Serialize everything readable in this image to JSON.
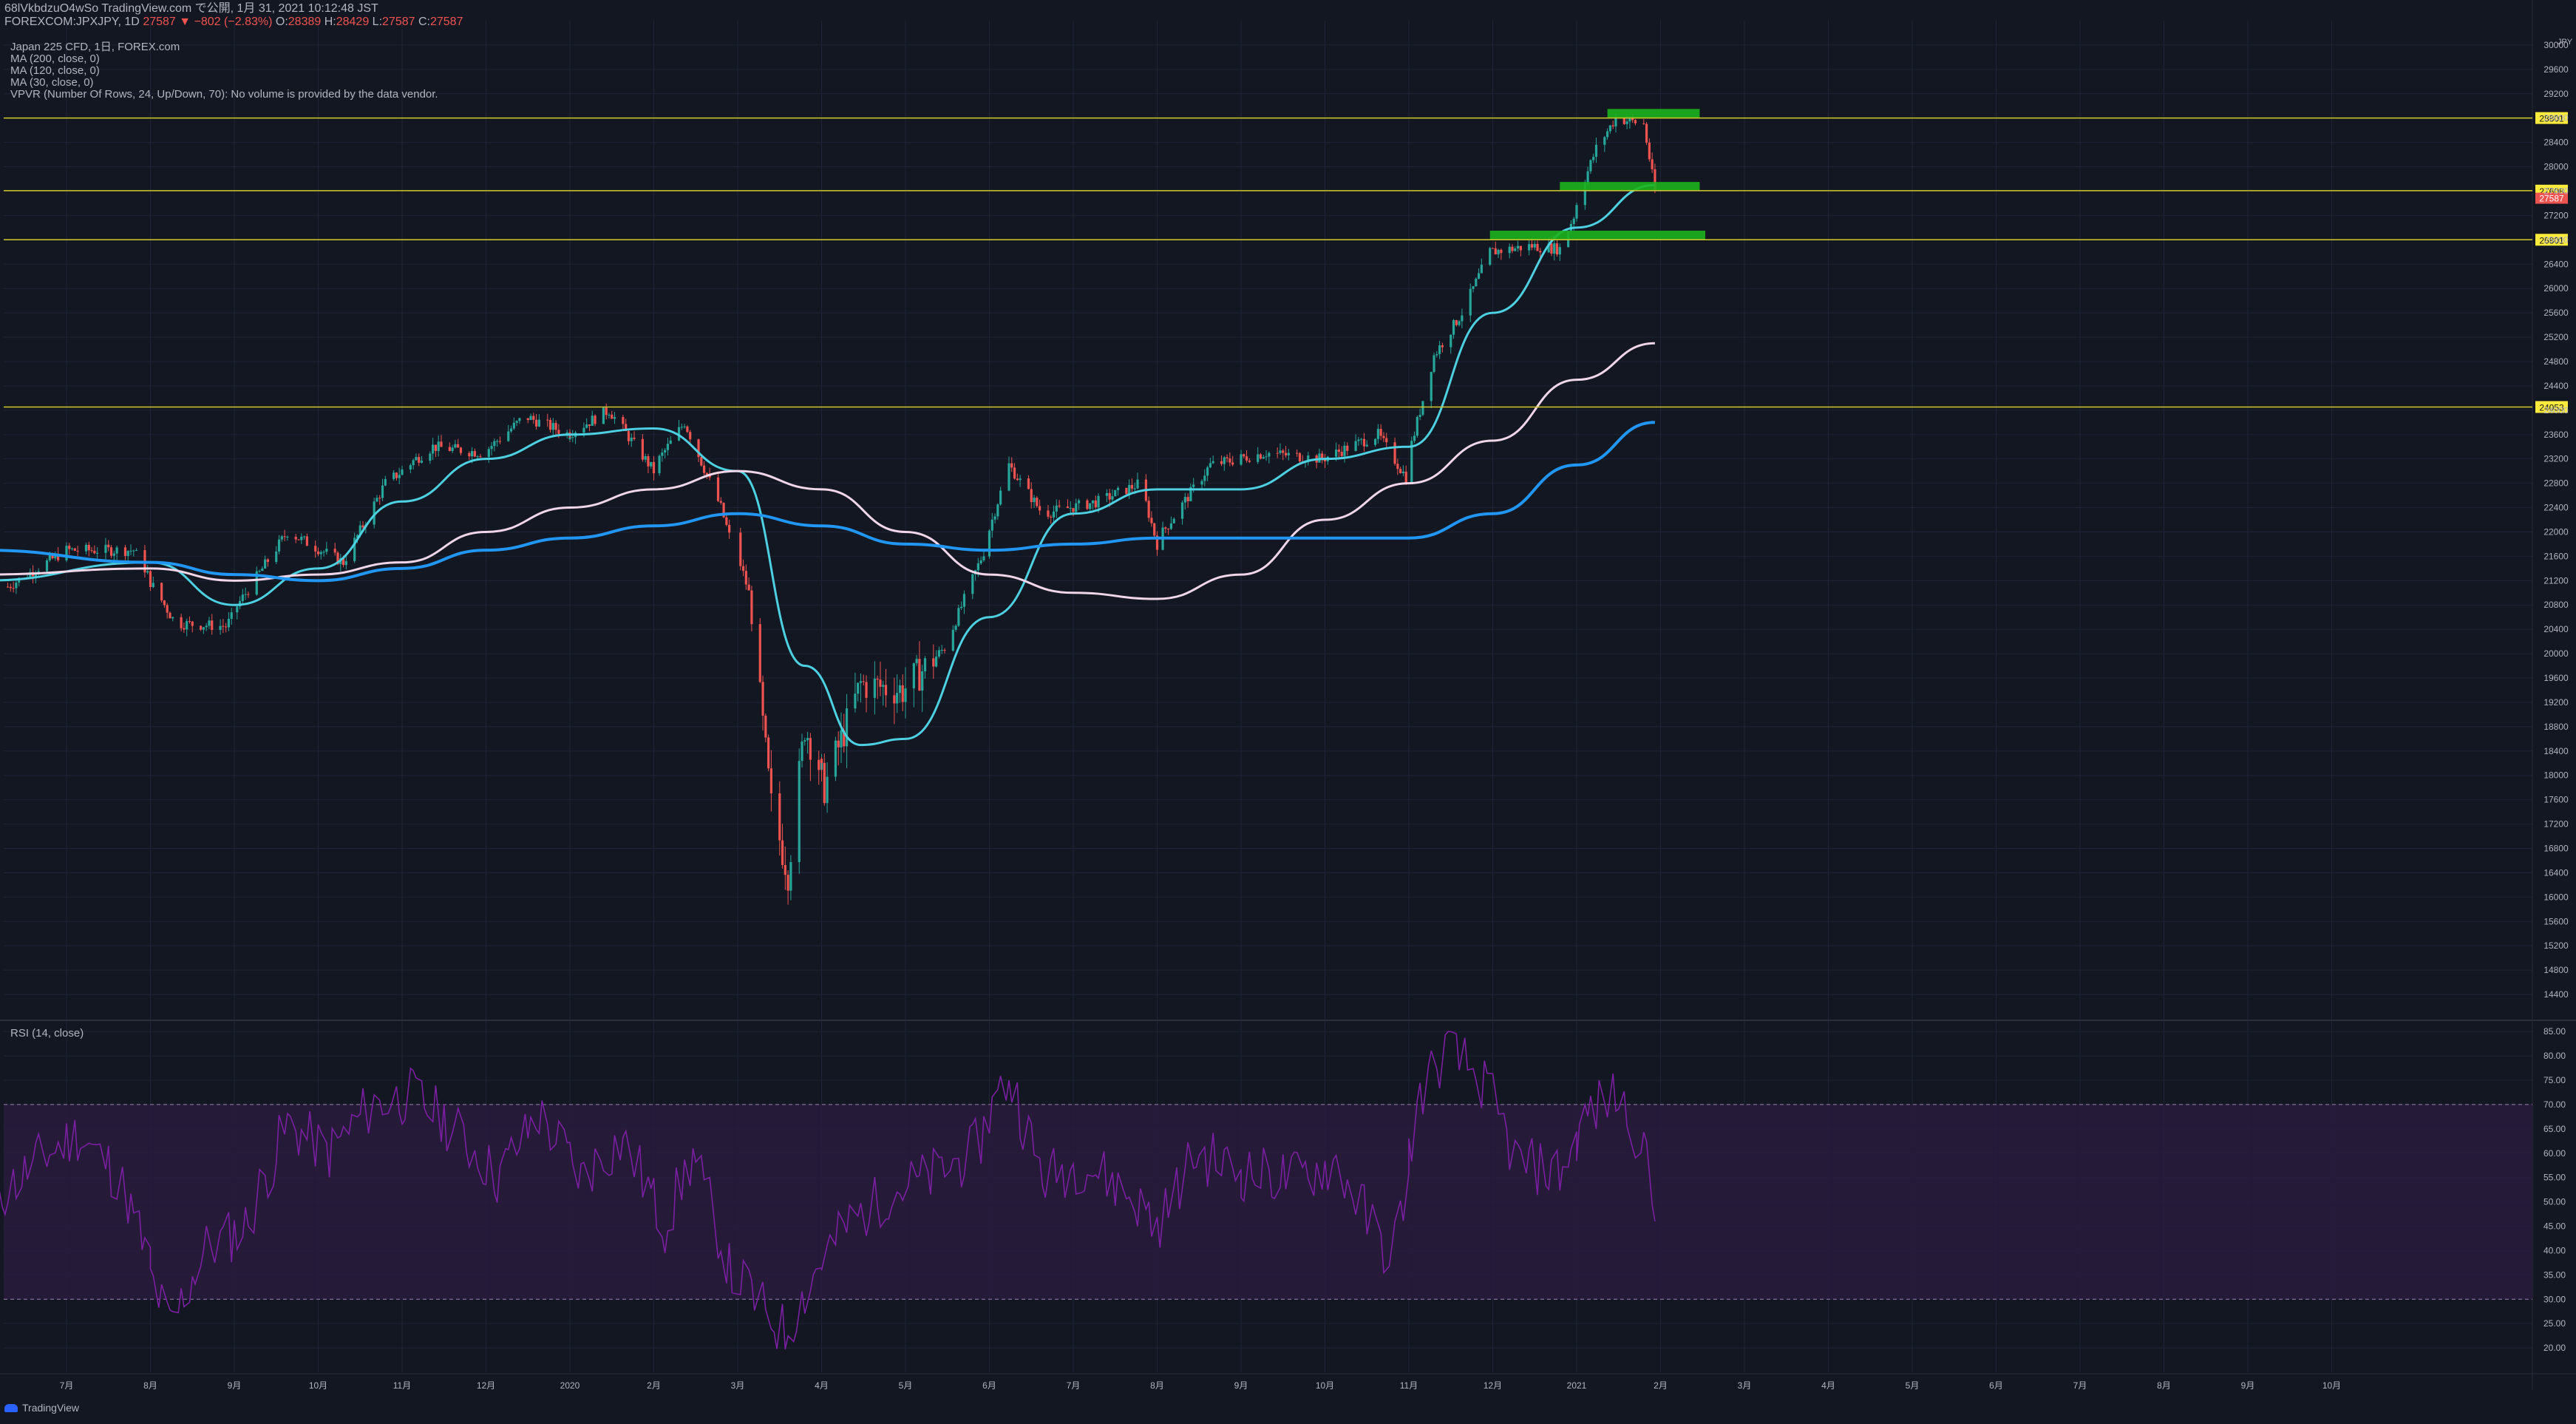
{
  "header": {
    "publish_line": "68lVkbdzuO4wSo TradingView.com で公開, 1月 31, 2021 10:12:48 JST",
    "symbol": "FOREXCOM:JPXJPY, 1D",
    "last": "27587",
    "change": "−802 (−2.83%)",
    "o_label": "O:",
    "o": "28389",
    "h_label": "H:",
    "h": "28429",
    "l_label": "L:",
    "l": "27587",
    "c_label": "C:",
    "c": "27587"
  },
  "legend": [
    "Japan 225 CFD, 1日, FOREX.com",
    "MA (200, close, 0)",
    "MA (120, close, 0)",
    "MA (30, close, 0)",
    "VPVR (Number Of Rows, 24, Up/Down, 70): No volume is provided by the data vendor."
  ],
  "rsi_label": "RSI (14, close)",
  "currency": "JPY",
  "footer_brand": "TradingView",
  "colors": {
    "background": "#131722",
    "grid": "#1f2536",
    "up": "#26a69a",
    "down": "#ef5350",
    "ma30": "#4dd0e1",
    "ma120": "#f0d6e8",
    "ma200": "#2196f3",
    "hline": "#d4c92a",
    "zone": "#1db31d",
    "rsi": "#7b1fa2",
    "rsi_band": "#2a1b3d"
  },
  "chart_data": [
    {
      "type": "candlestick",
      "title": "Japan 225 CFD, 1日, FOREX.com",
      "ylim": [
        14000,
        30400
      ],
      "y_ticks": [
        14400,
        14800,
        15200,
        15600,
        16000,
        16400,
        16800,
        17200,
        17600,
        18000,
        18400,
        18800,
        19200,
        19600,
        20000,
        20400,
        20800,
        21200,
        21600,
        22000,
        22400,
        22800,
        23200,
        23600,
        24000,
        24400,
        24800,
        25200,
        25600,
        26000,
        26400,
        26800,
        27200,
        27600,
        28000,
        28400,
        28800,
        29200,
        29600,
        30000
      ],
      "x_ticks": [
        "7月",
        "8月",
        "9月",
        "10月",
        "11月",
        "12月",
        "2020",
        "2月",
        "3月",
        "4月",
        "5月",
        "6月",
        "7月",
        "8月",
        "9月",
        "10月",
        "11月",
        "12月",
        "2021",
        "2月",
        "3月",
        "4月",
        "5月",
        "6月",
        "7月",
        "8月",
        "9月",
        "10月"
      ],
      "x_range_months": [
        "2019-06",
        "2021-10"
      ],
      "close_path": [
        [
          "2019-06-10",
          21100
        ],
        [
          "2019-07-01",
          21700
        ],
        [
          "2019-07-25",
          21700
        ],
        [
          "2019-08-10",
          20500
        ],
        [
          "2019-08-28",
          20450
        ],
        [
          "2019-09-20",
          22000
        ],
        [
          "2019-10-10",
          21500
        ],
        [
          "2019-10-25",
          22800
        ],
        [
          "2019-11-12",
          23400
        ],
        [
          "2019-11-30",
          23300
        ],
        [
          "2019-12-15",
          23900
        ],
        [
          "2019-12-31",
          23600
        ],
        [
          "2020-01-15",
          24000
        ],
        [
          "2020-01-31",
          23000
        ],
        [
          "2020-02-12",
          23800
        ],
        [
          "2020-02-25",
          22400
        ],
        [
          "2020-03-05",
          21000
        ],
        [
          "2020-03-13",
          17500
        ],
        [
          "2020-03-19",
          16400
        ],
        [
          "2020-03-25",
          18800
        ],
        [
          "2020-04-02",
          17800
        ],
        [
          "2020-04-15",
          19500
        ],
        [
          "2020-04-30",
          19400
        ],
        [
          "2020-05-15",
          20100
        ],
        [
          "2020-05-31",
          21900
        ],
        [
          "2020-06-08",
          23100
        ],
        [
          "2020-06-20",
          22300
        ],
        [
          "2020-07-10",
          22500
        ],
        [
          "2020-07-25",
          22800
        ],
        [
          "2020-07-31",
          21800
        ],
        [
          "2020-08-20",
          23100
        ],
        [
          "2020-09-10",
          23300
        ],
        [
          "2020-09-30",
          23200
        ],
        [
          "2020-10-20",
          23600
        ],
        [
          "2020-10-30",
          22900
        ],
        [
          "2020-11-10",
          24900
        ],
        [
          "2020-11-20",
          25600
        ],
        [
          "2020-11-30",
          26600
        ],
        [
          "2020-12-15",
          26700
        ],
        [
          "2020-12-25",
          26650
        ],
        [
          "2020-12-31",
          27300
        ],
        [
          "2021-01-08",
          28300
        ],
        [
          "2021-01-15",
          28800
        ],
        [
          "2021-01-25",
          28700
        ],
        [
          "2021-01-29",
          27587
        ]
      ],
      "moving_averages": [
        {
          "name": "MA (30, close, 0)",
          "points": [
            [
              "2019-06-01",
              21200
            ],
            [
              "2019-08-01",
              21500
            ],
            [
              "2019-09-01",
              20800
            ],
            [
              "2019-10-01",
              21400
            ],
            [
              "2019-11-01",
              22500
            ],
            [
              "2019-12-01",
              23200
            ],
            [
              "2020-01-01",
              23600
            ],
            [
              "2020-02-01",
              23700
            ],
            [
              "2020-03-01",
              23000
            ],
            [
              "2020-03-25",
              19800
            ],
            [
              "2020-04-15",
              18500
            ],
            [
              "2020-05-01",
              18600
            ],
            [
              "2020-06-01",
              20600
            ],
            [
              "2020-07-01",
              22300
            ],
            [
              "2020-08-01",
              22700
            ],
            [
              "2020-09-01",
              22700
            ],
            [
              "2020-10-01",
              23200
            ],
            [
              "2020-11-01",
              23400
            ],
            [
              "2020-12-01",
              25600
            ],
            [
              "2021-01-01",
              27000
            ],
            [
              "2021-01-29",
              27700
            ]
          ]
        },
        {
          "name": "MA (120, close, 0)",
          "points": [
            [
              "2019-06-01",
              21300
            ],
            [
              "2019-08-01",
              21400
            ],
            [
              "2019-09-01",
              21200
            ],
            [
              "2019-10-01",
              21300
            ],
            [
              "2019-11-01",
              21500
            ],
            [
              "2019-12-01",
              22000
            ],
            [
              "2020-01-01",
              22400
            ],
            [
              "2020-02-01",
              22700
            ],
            [
              "2020-03-01",
              23000
            ],
            [
              "2020-04-01",
              22700
            ],
            [
              "2020-05-01",
              22000
            ],
            [
              "2020-06-01",
              21300
            ],
            [
              "2020-07-01",
              21000
            ],
            [
              "2020-08-01",
              20900
            ],
            [
              "2020-09-01",
              21300
            ],
            [
              "2020-10-01",
              22200
            ],
            [
              "2020-11-01",
              22800
            ],
            [
              "2020-12-01",
              23500
            ],
            [
              "2021-01-01",
              24500
            ],
            [
              "2021-01-29",
              25100
            ]
          ]
        },
        {
          "name": "MA (200, close, 0)",
          "points": [
            [
              "2019-06-01",
              21700
            ],
            [
              "2019-08-01",
              21500
            ],
            [
              "2019-09-01",
              21300
            ],
            [
              "2019-10-01",
              21200
            ],
            [
              "2019-11-01",
              21400
            ],
            [
              "2019-12-01",
              21700
            ],
            [
              "2020-01-01",
              21900
            ],
            [
              "2020-02-01",
              22100
            ],
            [
              "2020-03-01",
              22300
            ],
            [
              "2020-04-01",
              22100
            ],
            [
              "2020-05-01",
              21800
            ],
            [
              "2020-06-01",
              21700
            ],
            [
              "2020-07-01",
              21800
            ],
            [
              "2020-08-01",
              21900
            ],
            [
              "2020-09-01",
              21900
            ],
            [
              "2020-10-01",
              21900
            ],
            [
              "2020-11-01",
              21900
            ],
            [
              "2020-12-01",
              22300
            ],
            [
              "2021-01-01",
              23100
            ],
            [
              "2021-01-29",
              23800
            ]
          ]
        }
      ],
      "horizontal_levels": [
        28801,
        27608,
        26801,
        24053
      ],
      "last_price": 27587,
      "zones": [
        {
          "from": "2021-01-12",
          "to": "2021-02-15",
          "low": 28800,
          "high": 28950
        },
        {
          "from": "2020-12-25",
          "to": "2021-02-15",
          "low": 27600,
          "high": 27750
        },
        {
          "from": "2020-11-30",
          "to": "2021-02-17",
          "low": 26800,
          "high": 26950
        }
      ]
    },
    {
      "type": "line",
      "title": "RSI (14, close)",
      "ylim": [
        15,
        87
      ],
      "y_ticks": [
        20,
        25,
        30,
        35,
        40,
        45,
        50,
        55,
        60,
        65,
        70,
        75,
        80,
        85
      ],
      "band": [
        30,
        70
      ],
      "points": [
        [
          "2019-06-05",
          50
        ],
        [
          "2019-06-20",
          58
        ],
        [
          "2019-07-05",
          64
        ],
        [
          "2019-07-20",
          55
        ],
        [
          "2019-08-01",
          35
        ],
        [
          "2019-08-08",
          24
        ],
        [
          "2019-08-20",
          40
        ],
        [
          "2019-09-05",
          45
        ],
        [
          "2019-09-20",
          66
        ],
        [
          "2019-10-05",
          60
        ],
        [
          "2019-10-20",
          70
        ],
        [
          "2019-11-05",
          72
        ],
        [
          "2019-11-20",
          65
        ],
        [
          "2019-12-05",
          55
        ],
        [
          "2019-12-20",
          68
        ],
        [
          "2020-01-05",
          55
        ],
        [
          "2020-01-20",
          63
        ],
        [
          "2020-02-05",
          45
        ],
        [
          "2020-02-15",
          60
        ],
        [
          "2020-02-28",
          36
        ],
        [
          "2020-03-10",
          28
        ],
        [
          "2020-03-18",
          23
        ],
        [
          "2020-03-28",
          35
        ],
        [
          "2020-04-10",
          45
        ],
        [
          "2020-04-25",
          52
        ],
        [
          "2020-05-10",
          55
        ],
        [
          "2020-05-25",
          60
        ],
        [
          "2020-06-08",
          76
        ],
        [
          "2020-06-20",
          55
        ],
        [
          "2020-07-05",
          58
        ],
        [
          "2020-07-20",
          52
        ],
        [
          "2020-08-01",
          45
        ],
        [
          "2020-08-15",
          60
        ],
        [
          "2020-09-01",
          56
        ],
        [
          "2020-09-20",
          55
        ],
        [
          "2020-10-05",
          58
        ],
        [
          "2020-10-25",
          38
        ],
        [
          "2020-11-05",
          72
        ],
        [
          "2020-11-15",
          82
        ],
        [
          "2020-11-28",
          74
        ],
        [
          "2020-12-10",
          58
        ],
        [
          "2020-12-25",
          56
        ],
        [
          "2021-01-05",
          68
        ],
        [
          "2021-01-15",
          72
        ],
        [
          "2021-01-25",
          62
        ],
        [
          "2021-01-29",
          46
        ]
      ]
    }
  ]
}
